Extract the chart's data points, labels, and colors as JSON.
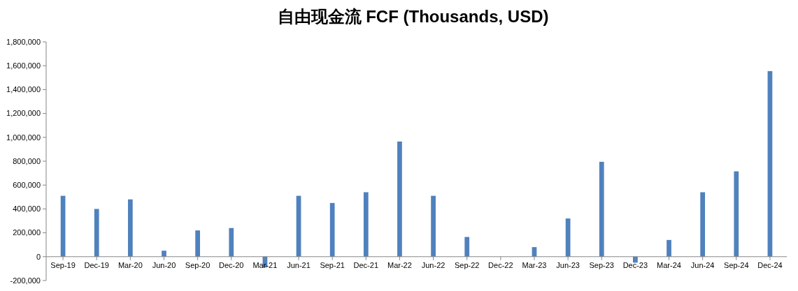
{
  "chart_data": {
    "type": "bar",
    "title": "自由现金流 FCF (Thousands, USD)",
    "categories": [
      "Sep-19",
      "Dec-19",
      "Mar-20",
      "Jun-20",
      "Sep-20",
      "Dec-20",
      "Mar-21",
      "Jun-21",
      "Sep-21",
      "Dec-21",
      "Mar-22",
      "Jun-22",
      "Sep-22",
      "Dec-22",
      "Mar-23",
      "Jun-23",
      "Sep-23",
      "Dec-23",
      "Mar-24",
      "Jun-24",
      "Sep-24",
      "Dec-24"
    ],
    "values": [
      510000,
      400000,
      480000,
      50000,
      220000,
      240000,
      -90000,
      510000,
      450000,
      540000,
      965000,
      510000,
      165000,
      0,
      80000,
      320000,
      795000,
      -50000,
      140000,
      540000,
      715000,
      1555000
    ],
    "color": "#4f81bd",
    "ylim": [
      -200000,
      1800000
    ],
    "yticks": [
      {
        "value": -200000,
        "label": "-200,000"
      },
      {
        "value": 0,
        "label": "0"
      },
      {
        "value": 200000,
        "label": "200,000"
      },
      {
        "value": 400000,
        "label": "400,000"
      },
      {
        "value": 600000,
        "label": "600,000"
      },
      {
        "value": 800000,
        "label": "800,000"
      },
      {
        "value": 1000000,
        "label": "1,000,000"
      },
      {
        "value": 1200000,
        "label": "1,200,000"
      },
      {
        "value": 1400000,
        "label": "1,400,000"
      },
      {
        "value": 1600000,
        "label": "1,600,000"
      },
      {
        "value": 1800000,
        "label": "1,800,000"
      }
    ],
    "grid": false
  }
}
